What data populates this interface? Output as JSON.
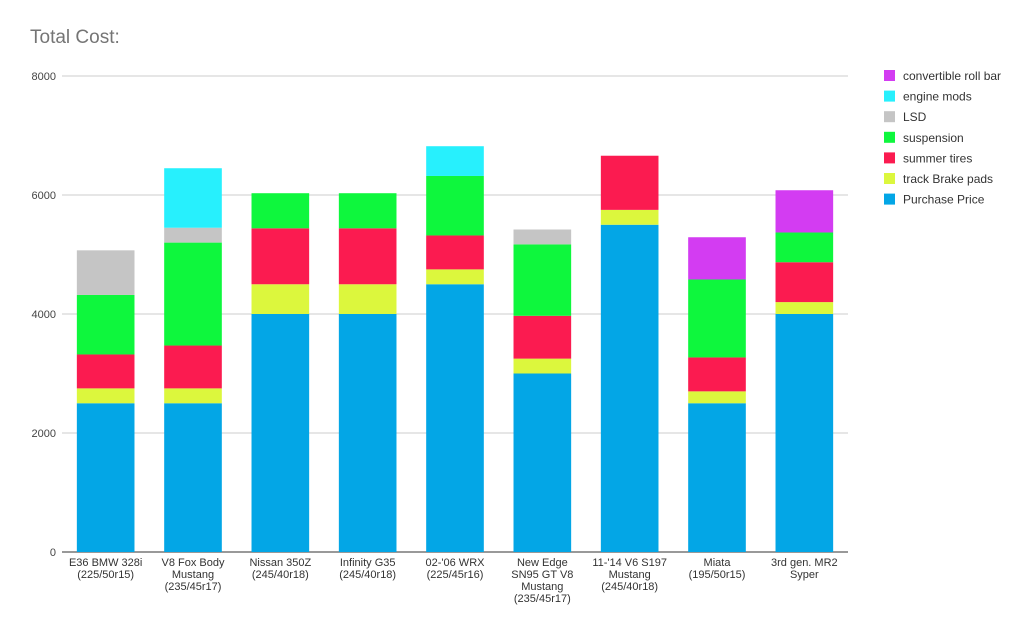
{
  "chart_data": {
    "type": "bar",
    "stacked": true,
    "title": "Total Cost:",
    "xlabel": "",
    "ylabel": "",
    "ylim": [
      0,
      8000
    ],
    "yticks": [
      "0",
      "2000",
      "4000",
      "6000",
      "8000"
    ],
    "grid": true,
    "legend_position": "right",
    "categories": [
      [
        "E36 BMW 328i",
        "(225/50r15)"
      ],
      [
        "V8 Fox Body",
        "Mustang",
        "(235/45r17)"
      ],
      [
        "Nissan 350Z",
        "(245/40r18)"
      ],
      [
        "Infinity G35",
        "(245/40r18)"
      ],
      [
        "02-'06 WRX",
        "(225/45r16)"
      ],
      [
        "New Edge",
        "SN95 GT V8",
        "Mustang",
        "(235/45r17)"
      ],
      [
        "11-'14 V6 S197",
        "Mustang",
        "(245/40r18)"
      ],
      [
        "Miata",
        "(195/50r15)"
      ],
      [
        "3rd gen. MR2",
        "Syper"
      ]
    ],
    "series": [
      {
        "name": "Purchase Price",
        "color": "#03a6e6",
        "values": [
          2500,
          2500,
          4000,
          4000,
          4500,
          3000,
          5500,
          2500,
          4000
        ]
      },
      {
        "name": "track Brake pads",
        "color": "#dcf73d",
        "values": [
          250,
          250,
          500,
          500,
          250,
          250,
          250,
          200,
          200
        ]
      },
      {
        "name": "summer tires",
        "color": "#fb1b50",
        "values": [
          570,
          720,
          940,
          940,
          570,
          720,
          910,
          570,
          670
        ]
      },
      {
        "name": "suspension",
        "color": "#0ef73d",
        "values": [
          1000,
          1730,
          590,
          590,
          1000,
          1200,
          0,
          1310,
          500
        ]
      },
      {
        "name": "LSD",
        "color": "#c5c5c5",
        "values": [
          750,
          250,
          0,
          0,
          0,
          250,
          0,
          0,
          0
        ]
      },
      {
        "name": "engine mods",
        "color": "#27f0fd",
        "values": [
          0,
          1000,
          0,
          0,
          500,
          0,
          0,
          0,
          0
        ]
      },
      {
        "name": "convertible roll bar",
        "color": "#d33cf2",
        "values": [
          0,
          0,
          0,
          0,
          0,
          0,
          0,
          710,
          710
        ]
      }
    ],
    "legend_order": [
      "convertible roll bar",
      "engine mods",
      "LSD",
      "suspension",
      "summer tires",
      "track Brake pads",
      "Purchase Price"
    ]
  }
}
